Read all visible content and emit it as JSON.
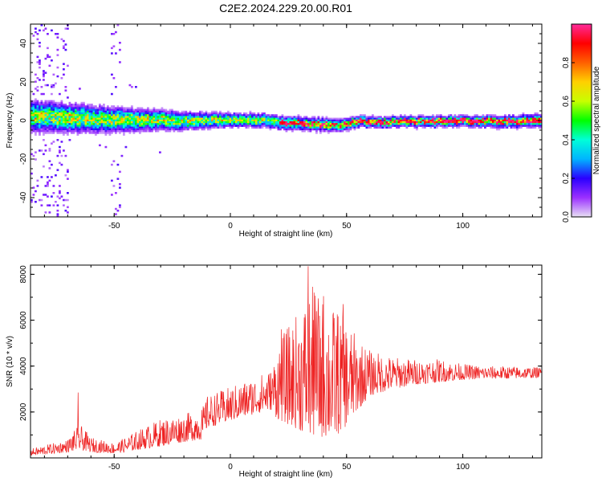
{
  "title": "C2E2.2024.229.20.00.R01",
  "chart_data": [
    {
      "type": "heatmap",
      "xlabel": "Height of straight line (km)",
      "ylabel": "Frequency (Hz)",
      "xlim": [
        -86,
        134
      ],
      "ylim": [
        -50,
        50
      ],
      "xticks": [
        -50,
        0,
        50,
        100
      ],
      "yticks": [
        -40,
        -20,
        0,
        20,
        40
      ],
      "ridge_center_hz": [
        [
          -86,
          2.5
        ],
        [
          -75,
          2.0
        ],
        [
          -65,
          1.5
        ],
        [
          -55,
          1.0
        ],
        [
          -45,
          0.5
        ],
        [
          -35,
          0.8
        ],
        [
          -25,
          0.5
        ],
        [
          -15,
          0.2
        ],
        [
          -5,
          0.5
        ],
        [
          5,
          0.8
        ],
        [
          15,
          0.3
        ],
        [
          25,
          -1.0
        ],
        [
          35,
          -1.5
        ],
        [
          45,
          -2.0
        ],
        [
          55,
          0.0
        ],
        [
          65,
          -0.5
        ],
        [
          75,
          0.0
        ],
        [
          85,
          -0.3
        ],
        [
          95,
          0.0
        ],
        [
          105,
          0.0
        ],
        [
          115,
          0.0
        ],
        [
          125,
          0.0
        ],
        [
          134,
          0.0
        ]
      ],
      "ridge_halfwidth_hz": [
        [
          -86,
          7
        ],
        [
          -60,
          6
        ],
        [
          -40,
          5
        ],
        [
          -20,
          4
        ],
        [
          0,
          3
        ],
        [
          40,
          3
        ],
        [
          60,
          2.5
        ],
        [
          100,
          2.5
        ],
        [
          134,
          3
        ]
      ],
      "colorbar": {
        "label": "Normalized spectral amplitude",
        "ticks": [
          0.0,
          0.2,
          0.4,
          0.6,
          0.8
        ],
        "range": [
          0,
          1
        ],
        "colormap": [
          "#e8e0f4",
          "#9b30ff",
          "#2a00ff",
          "#00b4ff",
          "#00ffd8",
          "#00ff00",
          "#c8ff00",
          "#ffd000",
          "#ff6000",
          "#ff0000",
          "#ff2a9a"
        ]
      }
    },
    {
      "type": "line",
      "xlabel": "Height of straight line (km)",
      "ylabel": "SNR (10 * v/v)",
      "xlim": [
        -86,
        134
      ],
      "ylim": [
        0,
        8400
      ],
      "xticks": [
        -50,
        0,
        50,
        100
      ],
      "yticks": [
        2000,
        4000,
        6000,
        8000
      ],
      "series": [
        {
          "color": "#ee2222",
          "envelope": [
            [
              -86,
              100,
              400
            ],
            [
              -80,
              150,
              550
            ],
            [
              -70,
              250,
              800
            ],
            [
              -65,
              350,
              1500
            ],
            [
              -60,
              250,
              900
            ],
            [
              -50,
              200,
              650
            ],
            [
              -45,
              250,
              900
            ],
            [
              -40,
              350,
              1200
            ],
            [
              -30,
              500,
              1700
            ],
            [
              -20,
              700,
              1900
            ],
            [
              -12,
              800,
              2200
            ],
            [
              -10,
              1300,
              2700
            ],
            [
              0,
              1600,
              3100
            ],
            [
              10,
              1900,
              3500
            ],
            [
              18,
              2100,
              3900
            ],
            [
              20,
              1700,
              5000
            ],
            [
              28,
              1300,
              6200
            ],
            [
              35,
              900,
              7500
            ],
            [
              45,
              900,
              6500
            ],
            [
              50,
              1400,
              6000
            ],
            [
              55,
              2100,
              5200
            ],
            [
              60,
              2700,
              4700
            ],
            [
              70,
              3000,
              4400
            ],
            [
              80,
              3200,
              4300
            ],
            [
              90,
              3300,
              4300
            ],
            [
              100,
              3400,
              4100
            ],
            [
              110,
              3450,
              4000
            ],
            [
              120,
              3450,
              4000
            ],
            [
              134,
              3500,
              3950
            ]
          ],
          "peaks": [
            [
              -65.5,
              2850
            ],
            [
              22,
              5600
            ],
            [
              33.5,
              8350
            ],
            [
              36,
              7200
            ],
            [
              40,
              7050
            ],
            [
              46,
              6250
            ],
            [
              48.5,
              6700
            ]
          ]
        }
      ]
    }
  ]
}
